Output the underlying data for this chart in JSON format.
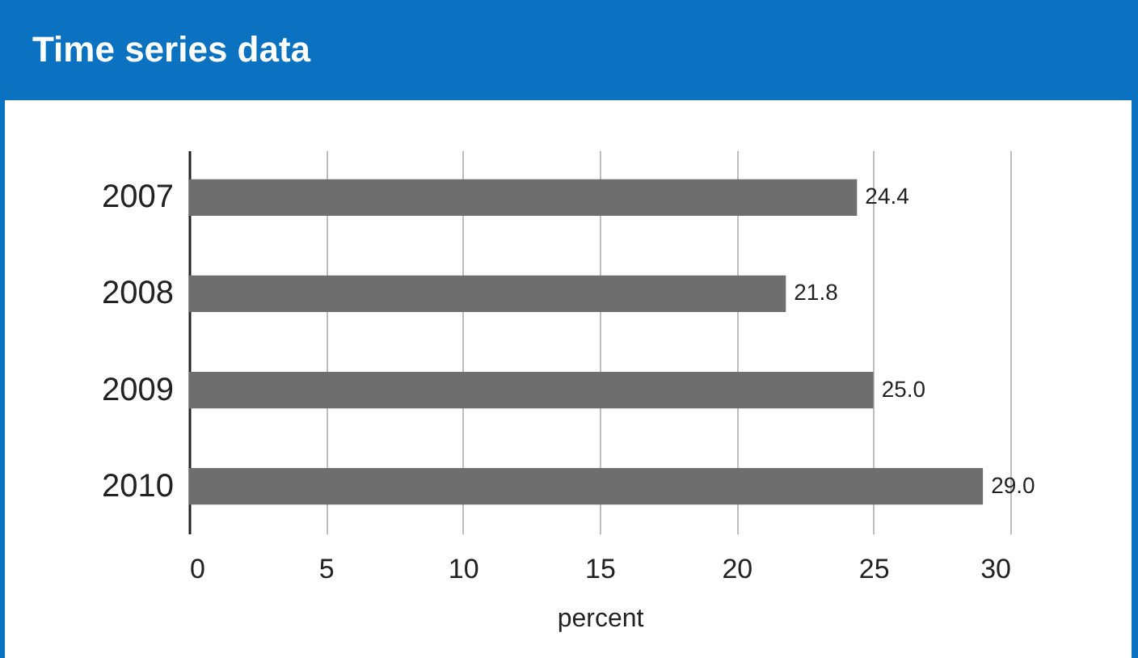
{
  "chart_data": {
    "type": "bar",
    "orientation": "horizontal",
    "title": "Time series data",
    "xlabel": "percent",
    "categories": [
      "2007",
      "2008",
      "2009",
      "2010"
    ],
    "values": [
      24.4,
      21.8,
      25.0,
      29.0
    ],
    "value_labels": [
      "24.4",
      "21.8",
      "25.0",
      "29.0"
    ],
    "color": "#6e6e6e",
    "xlim": [
      0,
      30
    ],
    "xticks": [
      0,
      5,
      10,
      15,
      20,
      25,
      30
    ],
    "grid": "x"
  }
}
